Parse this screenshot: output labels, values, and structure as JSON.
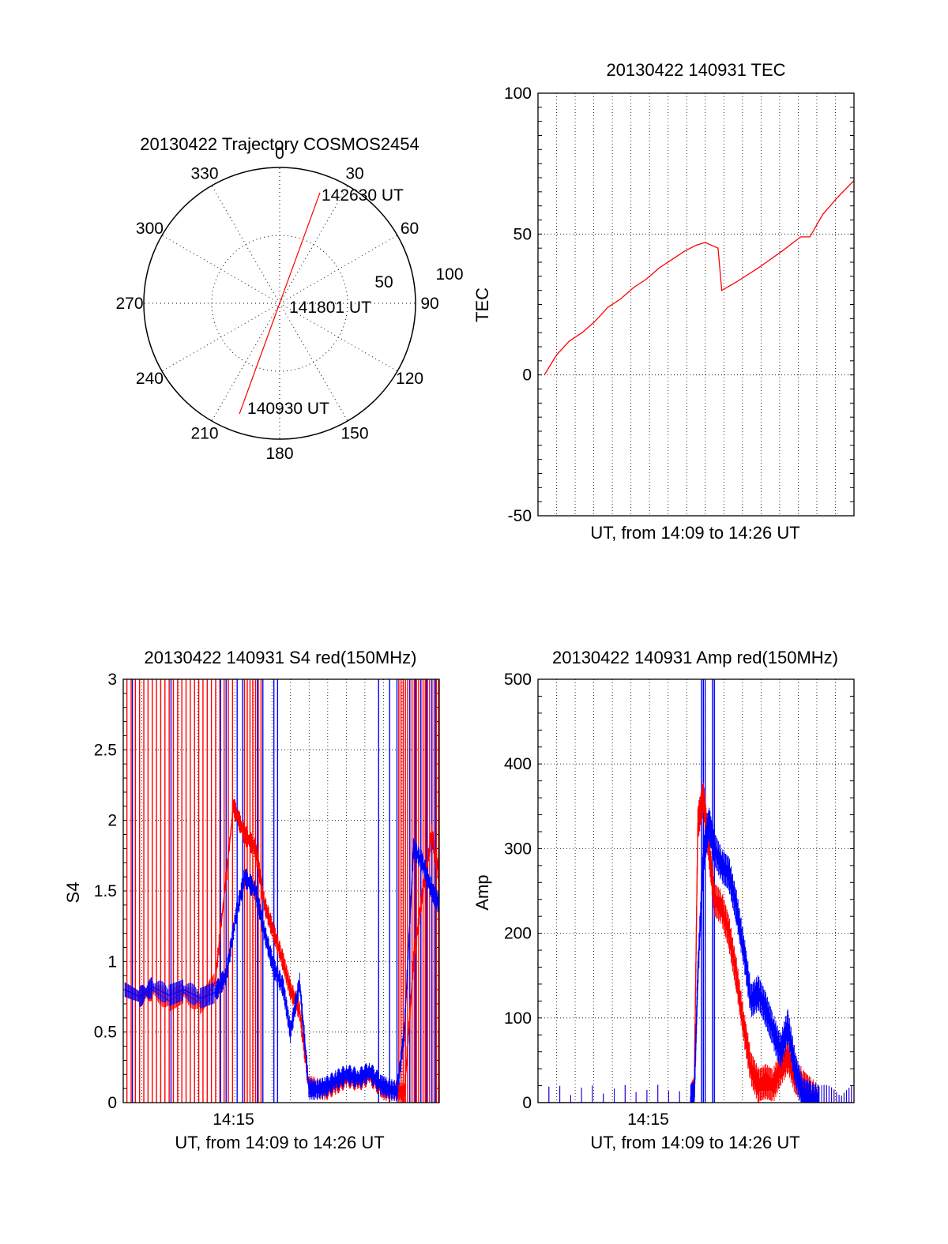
{
  "colors": {
    "red": "#ff0000",
    "blue": "#0000ff",
    "axis": "#000000",
    "grid": "#000000"
  },
  "chart_data": [
    {
      "id": "trajectory",
      "type": "polar",
      "title": "20130422 Trajectory COSMOS2454",
      "azimuth_labels": [
        "0",
        "30",
        "60",
        "90",
        "120",
        "150",
        "180",
        "210",
        "240",
        "270",
        "300",
        "330"
      ],
      "radial_labels": [
        "50",
        "100"
      ],
      "grid": true,
      "series": [
        {
          "color": "red",
          "points": [
            {
              "az": 20,
              "el": 12
            },
            {
              "az": 200,
              "el": 4
            },
            {
              "az": 200,
              "el": 12
            },
            {
              "az": 200,
              "el": 0
            }
          ]
        }
      ],
      "annotations": [
        {
          "text": "142630 UT",
          "az": 20,
          "el": 12
        },
        {
          "text": "141801 UT",
          "az": 90,
          "el": 85
        },
        {
          "text": "140930 UT",
          "az": 200,
          "el": 12
        }
      ]
    },
    {
      "id": "tec",
      "type": "line",
      "title": "20130422 140931 TEC",
      "xlabel": "UT, from 14:09 to 14:26 UT",
      "ylabel": "TEC",
      "xlim": [
        0,
        17.2
      ],
      "ylim": [
        -50,
        100
      ],
      "yticks": [
        "100",
        "50",
        "0",
        "-50"
      ],
      "grid": true,
      "series": [
        {
          "color": "red",
          "x": [
            0.35,
            1.0,
            1.7,
            2.4,
            3.1,
            3.8,
            4.5,
            5.2,
            5.9,
            6.6,
            7.3,
            8.0,
            8.6,
            9.1,
            9.8,
            10.0,
            10.8,
            12.0,
            13.3,
            14.3,
            14.8,
            15.5,
            16.3,
            17.2
          ],
          "y": [
            0,
            7,
            12,
            15,
            19,
            24,
            27,
            31,
            34,
            38,
            41,
            44,
            46,
            47,
            45,
            30,
            33,
            38,
            44,
            49,
            49,
            57,
            63,
            69
          ]
        }
      ]
    },
    {
      "id": "s4",
      "type": "line",
      "title": "20130422 140931 S4 red(150MHz)",
      "xlabel": "UT, from 14:09 to 14:26 UT",
      "ylabel": "S4",
      "xlim": [
        0,
        17.2
      ],
      "ylim": [
        0,
        3
      ],
      "xticks": [
        {
          "x": 6.0,
          "label": "14:15"
        }
      ],
      "yticks": [
        "0",
        "0.5",
        "1",
        "1.5",
        "2",
        "2.5",
        "3"
      ],
      "grid": true,
      "series": [
        {
          "color": "red",
          "x": [
            0.1,
            0.9,
            1.6,
            2.5,
            3.3,
            4.2,
            5.0,
            6.0,
            6.6,
            7.2,
            7.7,
            8.2,
            8.7,
            9.1,
            9.6,
            10.1,
            10.5,
            11.0,
            11.6,
            12.2,
            12.8,
            13.4,
            14.0,
            14.4,
            14.9,
            15.3,
            15.8,
            16.3,
            16.8,
            17.2
          ],
          "y": [
            0.8,
            0.75,
            0.8,
            0.72,
            0.78,
            0.7,
            0.85,
            2.1,
            1.9,
            1.8,
            1.4,
            1.2,
            1.0,
            0.8,
            0.65,
            0.12,
            0.1,
            0.09,
            0.13,
            0.18,
            0.15,
            0.2,
            0.11,
            0.08,
            0.09,
            0.06,
            1.0,
            1.5,
            1.9,
            1.6
          ]
        },
        {
          "color": "blue",
          "x": [
            0.1,
            0.9,
            1.6,
            2.5,
            3.3,
            4.2,
            5.0,
            5.6,
            6.1,
            6.6,
            7.2,
            7.7,
            8.2,
            8.7,
            9.1,
            9.6,
            10.1,
            10.5,
            11.0,
            11.6,
            12.2,
            12.8,
            13.4,
            14.0,
            14.4,
            14.9,
            15.3,
            15.8,
            16.3,
            16.8,
            17.2
          ],
          "y": [
            0.8,
            0.75,
            0.82,
            0.76,
            0.8,
            0.74,
            0.78,
            0.9,
            1.3,
            1.6,
            1.5,
            1.2,
            0.95,
            0.82,
            0.5,
            0.85,
            0.1,
            0.09,
            0.11,
            0.16,
            0.2,
            0.17,
            0.22,
            0.13,
            0.1,
            0.08,
            0.5,
            1.8,
            1.7,
            1.5,
            1.4
          ]
        }
      ]
    },
    {
      "id": "amp",
      "type": "line",
      "title": "20130422 140931 Amp red(150MHz)",
      "xlabel": "UT, from 14:09 to 14:26 UT",
      "ylabel": "Amp",
      "xlim": [
        0,
        17.2
      ],
      "ylim": [
        0,
        500
      ],
      "xticks": [
        {
          "x": 6.0,
          "label": "14:15"
        }
      ],
      "yticks": [
        "0",
        "100",
        "200",
        "300",
        "400",
        "500"
      ],
      "grid": true,
      "series": [
        {
          "color": "red",
          "x": [
            0,
            8.3,
            8.5,
            8.7,
            9.0,
            9.3,
            9.6,
            10.0,
            10.4,
            10.8,
            11.2,
            11.6,
            12.0,
            12.4,
            12.8,
            13.2,
            13.6,
            14.0,
            14.4,
            14.8,
            15.3,
            17.2
          ],
          "y": [
            0,
            0,
            10,
            330,
            360,
            300,
            240,
            230,
            200,
            150,
            90,
            40,
            20,
            25,
            20,
            40,
            55,
            30,
            20,
            10,
            0,
            0
          ]
        },
        {
          "color": "blue",
          "x": [
            0,
            8.3,
            8.5,
            8.7,
            9.0,
            9.3,
            9.6,
            10.0,
            10.4,
            10.8,
            11.2,
            11.6,
            12.0,
            12.4,
            12.8,
            13.2,
            13.6,
            14.0,
            14.4,
            14.8,
            15.3,
            17.2
          ],
          "y": [
            0,
            0,
            5,
            150,
            290,
            330,
            300,
            280,
            270,
            230,
            180,
            120,
            130,
            110,
            85,
            60,
            90,
            40,
            10,
            5,
            0,
            0
          ]
        }
      ]
    }
  ]
}
